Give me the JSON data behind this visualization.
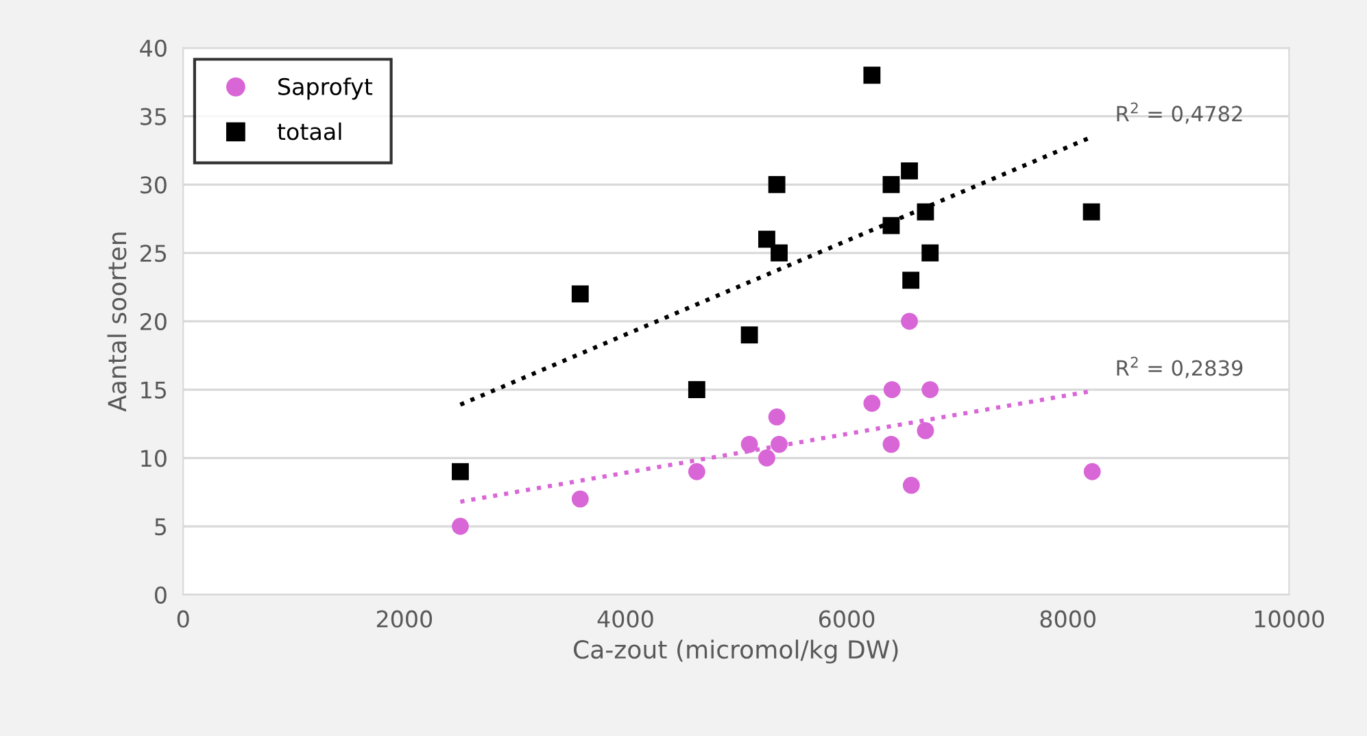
{
  "chart_data": {
    "type": "scatter",
    "xlabel": "Ca-zout (micromol/kg DW)",
    "ylabel": "Aantal soorten",
    "xlim": [
      0,
      10000
    ],
    "xticks": [
      0,
      2000,
      4000,
      6000,
      8000,
      10000
    ],
    "ylim": [
      0,
      40
    ],
    "yticks": [
      0,
      5,
      10,
      15,
      20,
      25,
      30,
      35,
      40
    ],
    "grid": "y",
    "legend": "top left",
    "series": [
      {
        "name": "Saprofyt",
        "color": "#d966d6",
        "marker": "circle",
        "x": [
          2506,
          3590,
          4644,
          5120,
          5277,
          5389,
          5368,
          6228,
          6410,
          6402,
          6567,
          6754,
          6712,
          6584,
          8220
        ],
        "values": [
          5,
          7,
          9,
          11,
          10,
          11,
          13,
          14,
          15,
          11,
          20,
          15,
          12,
          8,
          9
        ]
      },
      {
        "name": "totaal",
        "color": "#000000",
        "marker": "square",
        "x": [
          2506,
          3590,
          4644,
          5120,
          5277,
          5389,
          5368,
          6228,
          6402,
          6567,
          6402,
          6712,
          6754,
          6580,
          8213
        ],
        "values": [
          9,
          22,
          15,
          19,
          26,
          25,
          30,
          38,
          30,
          31,
          27,
          28,
          25,
          23,
          28
        ]
      },
      {
        "type": "line",
        "color": "#d966d6",
        "line_style": "dotted",
        "marker": "none",
        "x": [
          2506,
          8220
        ],
        "values": [
          6.8,
          14.9
        ]
      },
      {
        "type": "line",
        "color": "#000000",
        "line_style": "dotted",
        "marker": "none",
        "x": [
          2506,
          8220
        ],
        "values": [
          13.9,
          33.5
        ]
      }
    ],
    "annotations": [
      {
        "text": "R$^{2}$ = 0,4782",
        "x": 8220,
        "y": 33.5
      },
      {
        "text": "R$^{2}$ = 0,2839",
        "x": 8220,
        "y": 14.9
      }
    ]
  }
}
